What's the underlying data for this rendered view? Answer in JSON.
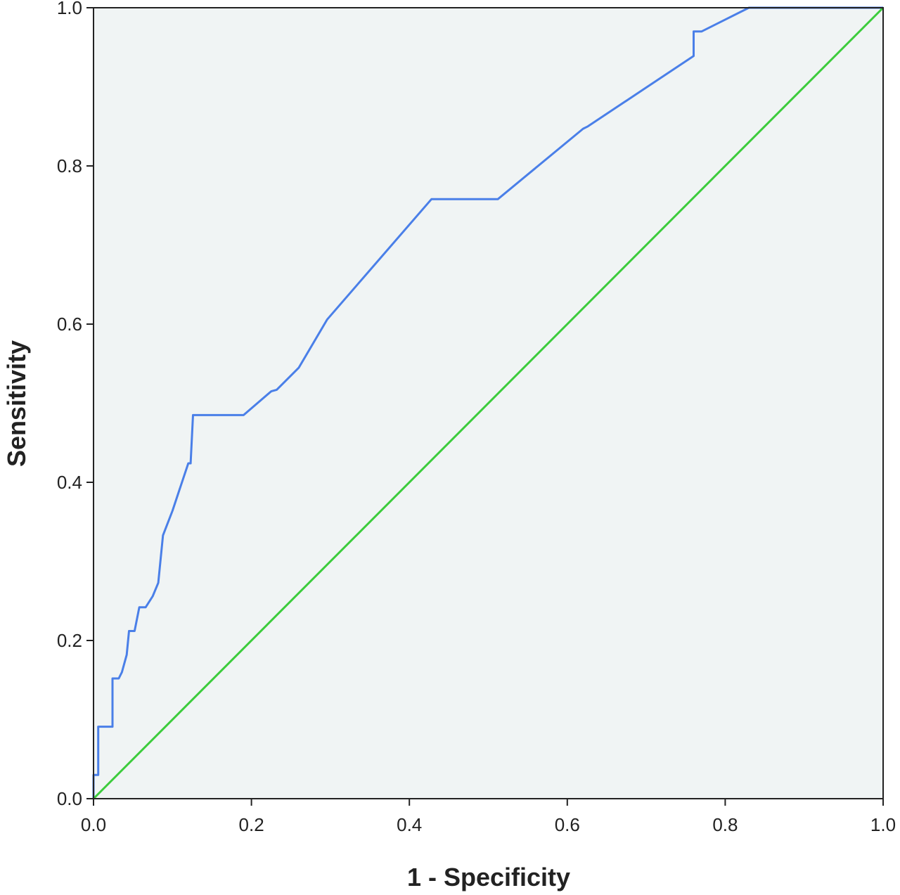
{
  "chart_data": {
    "type": "line",
    "title": "",
    "xlabel": "1 - Specificity",
    "ylabel": "Sensitivity",
    "xlim": [
      0,
      1
    ],
    "ylim": [
      0,
      1
    ],
    "xticks": [
      "0.0",
      "0.2",
      "0.4",
      "0.6",
      "0.8",
      "1.0"
    ],
    "yticks": [
      "0.0",
      "0.2",
      "0.4",
      "0.6",
      "0.8",
      "1.0"
    ],
    "grid": false,
    "legend": "none",
    "plot_background": "#f0f4f4",
    "series": [
      {
        "color": "#4a7fe8",
        "points": [
          [
            0.0,
            0.0
          ],
          [
            0.0,
            0.03
          ],
          [
            0.006,
            0.03
          ],
          [
            0.006,
            0.091
          ],
          [
            0.024,
            0.091
          ],
          [
            0.024,
            0.152
          ],
          [
            0.032,
            0.152
          ],
          [
            0.036,
            0.16
          ],
          [
            0.042,
            0.182
          ],
          [
            0.045,
            0.212
          ],
          [
            0.052,
            0.212
          ],
          [
            0.058,
            0.242
          ],
          [
            0.066,
            0.242
          ],
          [
            0.075,
            0.256
          ],
          [
            0.082,
            0.273
          ],
          [
            0.088,
            0.333
          ],
          [
            0.1,
            0.364
          ],
          [
            0.11,
            0.394
          ],
          [
            0.12,
            0.424
          ],
          [
            0.123,
            0.424
          ],
          [
            0.126,
            0.485
          ],
          [
            0.19,
            0.485
          ],
          [
            0.225,
            0.515
          ],
          [
            0.232,
            0.517
          ],
          [
            0.26,
            0.545
          ],
          [
            0.296,
            0.606
          ],
          [
            0.428,
            0.758
          ],
          [
            0.512,
            0.758
          ],
          [
            0.62,
            0.847
          ],
          [
            0.626,
            0.85
          ],
          [
            0.76,
            0.939
          ],
          [
            0.76,
            0.97
          ],
          [
            0.77,
            0.97
          ],
          [
            0.83,
            1.0
          ],
          [
            1.0,
            1.0
          ]
        ]
      },
      {
        "color": "#3ccc3c",
        "points": [
          [
            0,
            0
          ],
          [
            1,
            1
          ]
        ]
      }
    ]
  }
}
